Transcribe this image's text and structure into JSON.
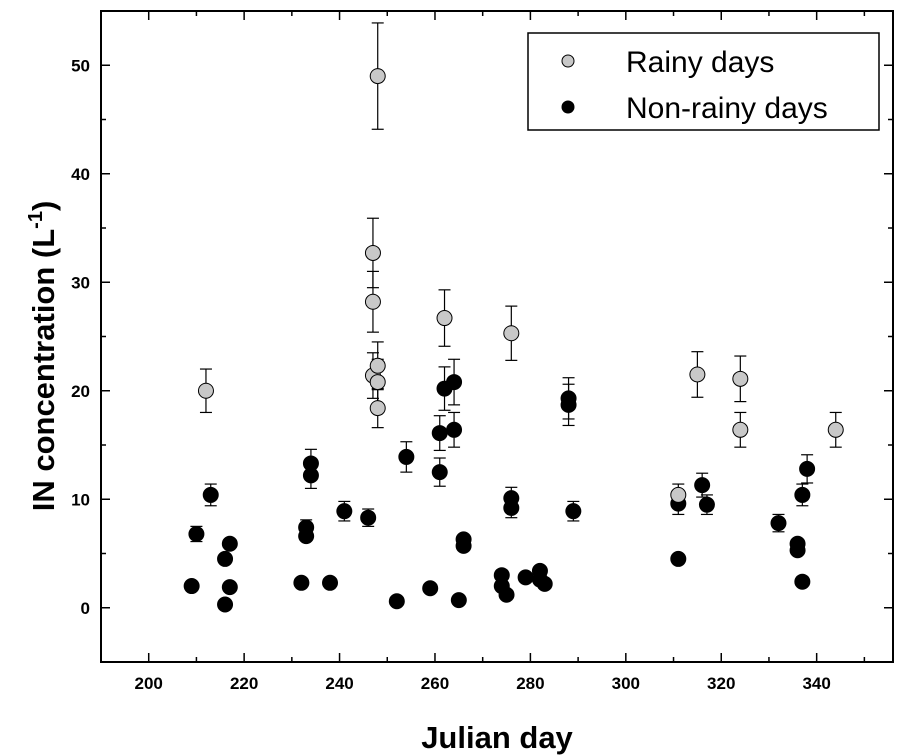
{
  "chart_data": {
    "type": "scatter",
    "xlabel": "Julian day",
    "ylabel": "IN concentration (L",
    "ylabel_superscript": "-1",
    "ylabel_suffix": ")",
    "xlim": [
      190,
      356
    ],
    "ylim": [
      -5,
      55
    ],
    "xticks": [
      200,
      220,
      240,
      260,
      280,
      300,
      320,
      340
    ],
    "yticks": [
      0,
      10,
      20,
      30,
      40,
      50
    ],
    "grid": false,
    "legend_position": "top-right",
    "series": [
      {
        "name": "Rainy days",
        "color": "#c8c8c8",
        "points": [
          {
            "x": 212,
            "y": 20.0,
            "err": 2.0
          },
          {
            "x": 247,
            "y": 32.7,
            "err": 3.2
          },
          {
            "x": 247,
            "y": 28.2,
            "err": 2.8
          },
          {
            "x": 247,
            "y": 21.4,
            "err": 2.1
          },
          {
            "x": 248,
            "y": 49.0,
            "err": 4.9
          },
          {
            "x": 248,
            "y": 22.3,
            "err": 2.2
          },
          {
            "x": 248,
            "y": 20.8,
            "err": 2.1
          },
          {
            "x": 248,
            "y": 18.4,
            "err": 1.8
          },
          {
            "x": 262,
            "y": 26.7,
            "err": 2.6
          },
          {
            "x": 276,
            "y": 25.3,
            "err": 2.5
          },
          {
            "x": 311,
            "y": 10.4,
            "err": 1.0
          },
          {
            "x": 315,
            "y": 21.5,
            "err": 2.1
          },
          {
            "x": 324,
            "y": 21.1,
            "err": 2.1
          },
          {
            "x": 324,
            "y": 16.4,
            "err": 1.6
          },
          {
            "x": 344,
            "y": 16.4,
            "err": 1.6
          }
        ]
      },
      {
        "name": "Non-rainy days",
        "color": "#000000",
        "points": [
          {
            "x": 209,
            "y": 2.0
          },
          {
            "x": 210,
            "y": 6.8,
            "err": 0.7
          },
          {
            "x": 213,
            "y": 10.4,
            "err": 1.0
          },
          {
            "x": 216,
            "y": 4.5
          },
          {
            "x": 216,
            "y": 0.3
          },
          {
            "x": 217,
            "y": 5.9
          },
          {
            "x": 217,
            "y": 1.9
          },
          {
            "x": 232,
            "y": 2.3
          },
          {
            "x": 233,
            "y": 7.4,
            "err": 0.7
          },
          {
            "x": 233,
            "y": 6.6
          },
          {
            "x": 234,
            "y": 13.3,
            "err": 1.3
          },
          {
            "x": 234,
            "y": 12.2,
            "err": 1.2
          },
          {
            "x": 238,
            "y": 2.3
          },
          {
            "x": 241,
            "y": 8.9,
            "err": 0.9
          },
          {
            "x": 246,
            "y": 8.3,
            "err": 0.8
          },
          {
            "x": 252,
            "y": 0.6
          },
          {
            "x": 254,
            "y": 13.9,
            "err": 1.4
          },
          {
            "x": 259,
            "y": 1.8
          },
          {
            "x": 261,
            "y": 16.1,
            "err": 1.6
          },
          {
            "x": 261,
            "y": 12.5,
            "err": 1.3
          },
          {
            "x": 262,
            "y": 20.2,
            "err": 2.0
          },
          {
            "x": 264,
            "y": 20.8,
            "err": 2.1
          },
          {
            "x": 264,
            "y": 16.4,
            "err": 1.6
          },
          {
            "x": 265,
            "y": 0.7
          },
          {
            "x": 266,
            "y": 6.3
          },
          {
            "x": 266,
            "y": 5.7
          },
          {
            "x": 274,
            "y": 3.0
          },
          {
            "x": 274,
            "y": 2.0
          },
          {
            "x": 275,
            "y": 1.2
          },
          {
            "x": 276,
            "y": 10.1,
            "err": 1.0
          },
          {
            "x": 276,
            "y": 9.2,
            "err": 0.9
          },
          {
            "x": 279,
            "y": 2.8
          },
          {
            "x": 282,
            "y": 3.4
          },
          {
            "x": 282,
            "y": 2.6
          },
          {
            "x": 283,
            "y": 2.2
          },
          {
            "x": 288,
            "y": 19.3,
            "err": 1.9
          },
          {
            "x": 288,
            "y": 18.7,
            "err": 1.9
          },
          {
            "x": 289,
            "y": 8.9,
            "err": 0.9
          },
          {
            "x": 311,
            "y": 9.6,
            "err": 1.0
          },
          {
            "x": 311,
            "y": 4.5
          },
          {
            "x": 316,
            "y": 11.3,
            "err": 1.1
          },
          {
            "x": 317,
            "y": 9.5,
            "err": 0.9
          },
          {
            "x": 332,
            "y": 7.8,
            "err": 0.8
          },
          {
            "x": 336,
            "y": 5.9
          },
          {
            "x": 336,
            "y": 5.3
          },
          {
            "x": 337,
            "y": 10.4,
            "err": 1.0
          },
          {
            "x": 337,
            "y": 2.4
          },
          {
            "x": 338,
            "y": 12.8,
            "err": 1.3
          }
        ]
      }
    ]
  }
}
